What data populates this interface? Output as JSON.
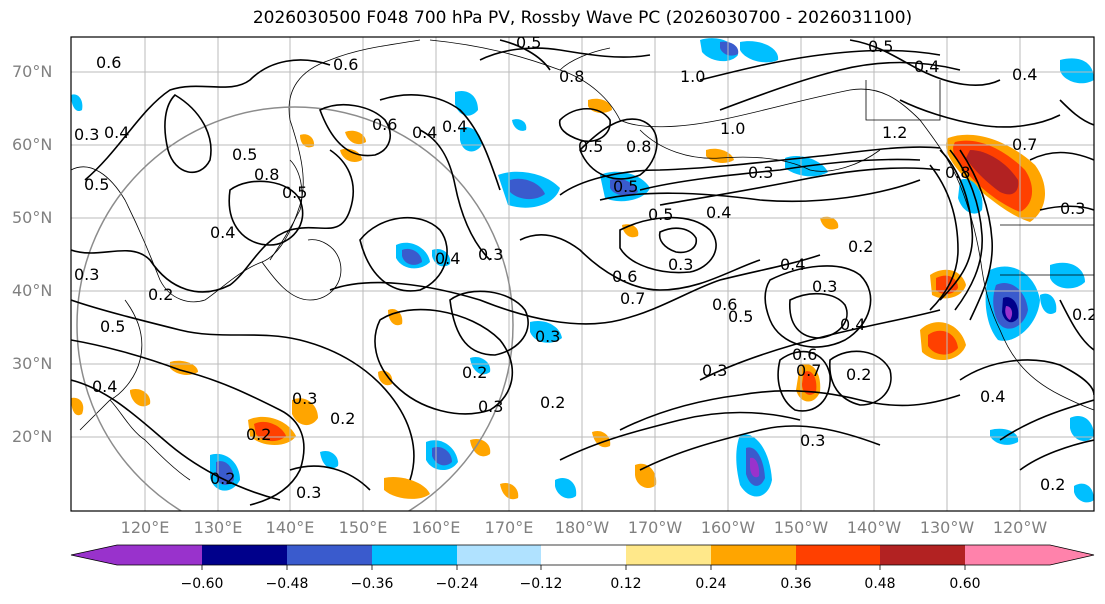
{
  "title": "2026030500 F048 700 hPa PV, Rossby Wave PC (2026030700 - 2026031100)",
  "latitude_labels": [
    "70°N",
    "60°N",
    "50°N",
    "40°N",
    "30°N",
    "20°N"
  ],
  "longitude_labels": [
    "120°E",
    "130°E",
    "140°E",
    "150°E",
    "160°E",
    "170°E",
    "180°W",
    "170°W",
    "160°W",
    "150°W",
    "140°W",
    "130°W",
    "120°W"
  ],
  "colorbar": {
    "ticks": [
      "−0.60",
      "−0.48",
      "−0.36",
      "−0.24",
      "−0.12",
      "0.12",
      "0.24",
      "0.36",
      "0.48",
      "0.60"
    ],
    "colors": [
      "#9932cc",
      "#00008b",
      "#3a5bcd",
      "#00bfff",
      "#b0e2ff",
      "#ffffff",
      "#ffe88a",
      "#ffa500",
      "#ff4000",
      "#b22222",
      "#ff82ab"
    ]
  },
  "contour_labels": [
    "0.5",
    "0.5",
    "0.4",
    "0.6",
    "0.6",
    "0.8",
    "1.0",
    "0.4",
    "0.3",
    "0.4",
    "0.5",
    "0.4",
    "0.6",
    "0.4",
    "0.5",
    "0.8",
    "1.0",
    "0.5",
    "0.8",
    "1.2",
    "0.3",
    "0.5",
    "0.8",
    "0.7",
    "0.5",
    "0.4",
    "0.3",
    "0.5",
    "0.4",
    "0.3",
    "0.4",
    "0.2",
    "0.6",
    "0.7",
    "0.3",
    "0.4",
    "0.3",
    "0.3",
    "0.6",
    "0.5",
    "0.3",
    "0.5",
    "0.2",
    "0.4",
    "0.3",
    "0.2",
    "0.6",
    "0.7",
    "0.3",
    "0.2",
    "0.3",
    "0.4",
    "0.2",
    "0.2",
    "0.4",
    "0.3",
    "0.2",
    "0.2",
    "0.3",
    "0.2",
    "0.2"
  ]
}
